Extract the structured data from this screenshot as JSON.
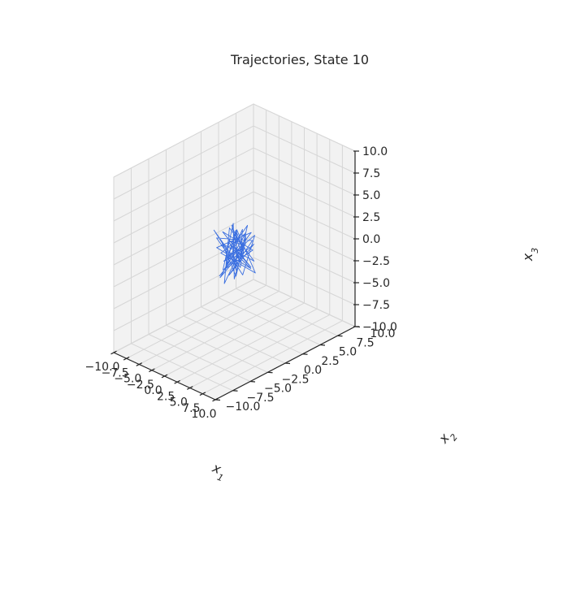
{
  "chart_data": {
    "type": "line3d",
    "title": "Trajectories, State 10",
    "xlabel": "x_1",
    "ylabel": "x_2",
    "zlabel": "x_3",
    "xlim": [
      -10,
      10
    ],
    "ylim": [
      -10,
      10
    ],
    "zlim": [
      -10,
      10
    ],
    "x_ticks": [
      "−10.0",
      "−7.5",
      "−5.0",
      "−2.5",
      "0.0",
      "2.5",
      "5.0",
      "7.5",
      "10.0"
    ],
    "y_ticks": [
      "−10.0",
      "−7.5",
      "−5.0",
      "−2.5",
      "0.0",
      "2.5",
      "5.0",
      "7.5",
      "10.0"
    ],
    "z_ticks": [
      "−10.0",
      "−7.5",
      "−5.0",
      "−2.5",
      "0.0",
      "2.5",
      "5.0",
      "7.5",
      "10.0"
    ],
    "grid": true,
    "line_color": "#3b6fe0",
    "series": [
      {
        "name": "trajectory",
        "points": [
          [
            0.4,
            0.2,
            -0.6
          ],
          [
            1.8,
            -1.2,
            1.4
          ],
          [
            -1.1,
            1.6,
            -2.1
          ],
          [
            0.9,
            0.5,
            2.6
          ],
          [
            -0.7,
            -0.9,
            -1.8
          ],
          [
            2.1,
            1.1,
            0.3
          ],
          [
            -1.9,
            -0.3,
            1.9
          ],
          [
            0.2,
            2.2,
            -2.6
          ],
          [
            1.4,
            -1.8,
            2.2
          ],
          [
            -0.4,
            0.8,
            -0.9
          ],
          [
            2.4,
            0.6,
            -1.5
          ],
          [
            -1.3,
            -1.6,
            0.8
          ],
          [
            0.7,
            1.9,
            1.6
          ],
          [
            -2.2,
            0.4,
            -2.3
          ],
          [
            1.1,
            -0.6,
            3.0
          ],
          [
            -0.1,
            1.3,
            -0.2
          ],
          [
            1.9,
            -1.4,
            -2.0
          ],
          [
            -1.6,
            1.0,
            2.4
          ],
          [
            0.5,
            -2.0,
            -1.1
          ],
          [
            2.6,
            0.9,
            1.2
          ],
          [
            -0.8,
            -0.2,
            -2.8
          ],
          [
            1.2,
            1.7,
            0.9
          ],
          [
            -2.0,
            -1.1,
            1.5
          ],
          [
            0.3,
            0.1,
            -1.6
          ],
          [
            1.6,
            -0.9,
            2.7
          ],
          [
            -1.2,
            2.0,
            -0.7
          ],
          [
            0.8,
            -1.5,
            0.4
          ],
          [
            -0.5,
            0.7,
            2.1
          ],
          [
            2.2,
            1.4,
            -2.4
          ],
          [
            -1.7,
            -0.7,
            -0.3
          ],
          [
            0.6,
            1.2,
            1.8
          ],
          [
            -0.2,
            -1.9,
            -2.2
          ],
          [
            1.5,
            0.3,
            0.6
          ],
          [
            -2.3,
            1.5,
            -1.3
          ],
          [
            1.0,
            -0.4,
            2.9
          ],
          [
            -0.9,
            0.9,
            -2.7
          ],
          [
            2.0,
            -1.7,
            1.0
          ],
          [
            -1.4,
            0.2,
            -0.5
          ],
          [
            0.1,
            1.8,
            2.3
          ],
          [
            1.7,
            -1.0,
            -1.9
          ],
          [
            -0.6,
            -1.3,
            1.3
          ],
          [
            2.5,
            1.0,
            -0.8
          ],
          [
            -1.8,
            0.6,
            2.0
          ],
          [
            0.9,
            -2.1,
            -2.5
          ],
          [
            -0.3,
            1.5,
            0.2
          ],
          [
            1.3,
            -0.1,
            -1.4
          ],
          [
            -2.1,
            -1.4,
            2.5
          ],
          [
            0.4,
            0.9,
            -2.9
          ],
          [
            1.8,
            1.6,
            1.7
          ],
          [
            -1.0,
            -0.8,
            -1.0
          ],
          [
            2.3,
            -1.3,
            0.7
          ],
          [
            -1.5,
            1.8,
            -2.1
          ],
          [
            0.2,
            -0.5,
            3.3
          ],
          [
            1.1,
            0.4,
            -0.4
          ],
          [
            -0.7,
            2.1,
            1.1
          ],
          [
            3.0,
            -0.6,
            1.9
          ],
          [
            -1.3,
            -1.2,
            -2.6
          ],
          [
            0.6,
            1.1,
            0.5
          ],
          [
            1.4,
            -1.9,
            2.4
          ],
          [
            -2.4,
            0.5,
            -1.7
          ],
          [
            0.0,
            -0.3,
            0.0
          ]
        ]
      }
    ]
  }
}
